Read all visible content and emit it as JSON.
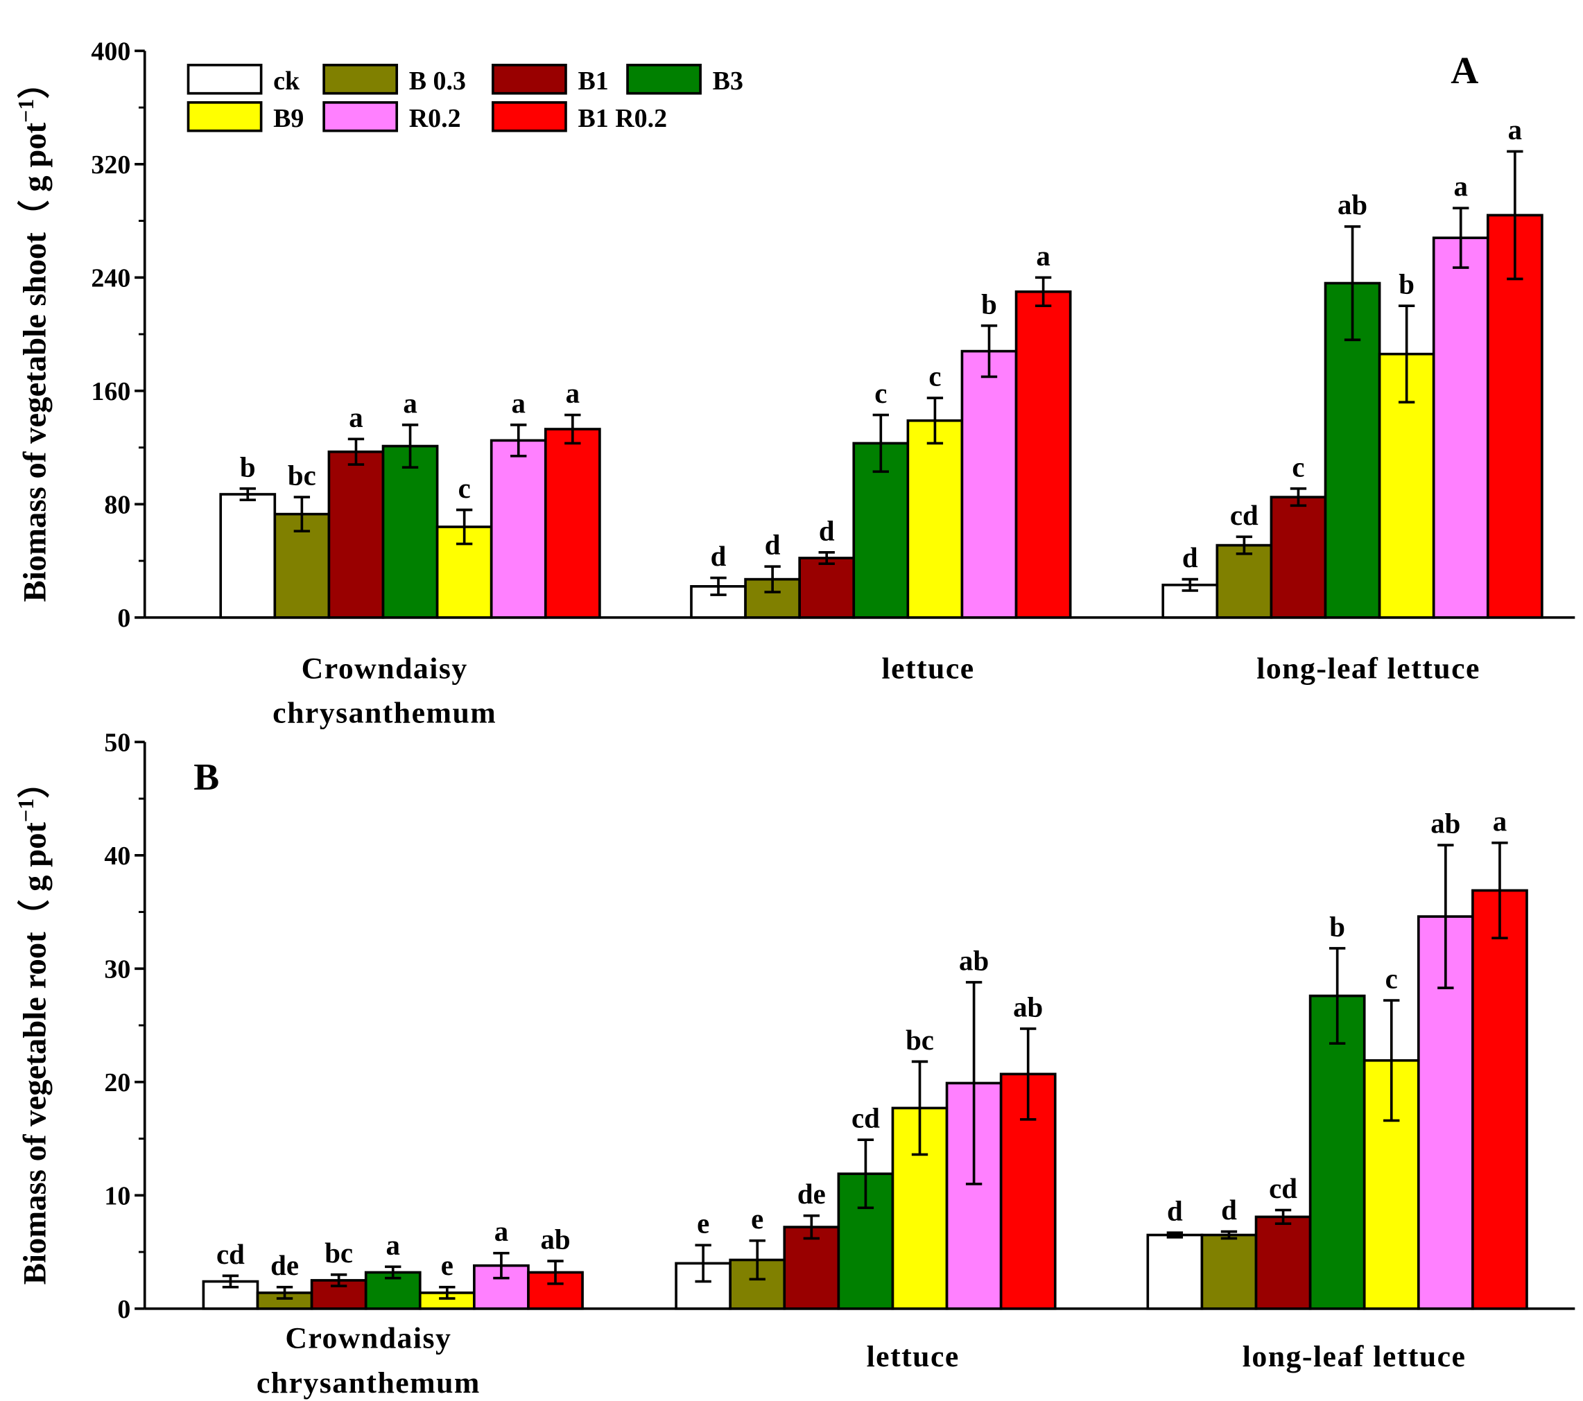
{
  "chart_data": [
    {
      "type": "bar",
      "panel_label": "A",
      "title": "",
      "xlabel": "",
      "ylabel": "Biomass of vegetable shoot（ g pot",
      "ylabel_sup": "−1",
      "ylabel_close": "）",
      "ylim": [
        0,
        400
      ],
      "yticks": [
        0,
        80,
        160,
        240,
        320,
        400
      ],
      "categories": [
        [
          "Crowndaisy",
          "chrysanthemum"
        ],
        [
          "lettuce"
        ],
        [
          "long-leaf lettuce"
        ]
      ],
      "series": [
        {
          "name": "ck",
          "color": "#ffffff",
          "values": [
            87,
            22,
            23
          ],
          "errors": [
            4,
            6,
            4
          ],
          "letters": [
            "b",
            "d",
            "d"
          ]
        },
        {
          "name": "B 0.3",
          "color": "#808000",
          "values": [
            73,
            27,
            51
          ],
          "errors": [
            12,
            9,
            6
          ],
          "letters": [
            "bc",
            "d",
            "cd"
          ]
        },
        {
          "name": "B1",
          "color": "#990000",
          "values": [
            117,
            42,
            85
          ],
          "errors": [
            9,
            4,
            6
          ],
          "letters": [
            "a",
            "d",
            "c"
          ]
        },
        {
          "name": "B3",
          "color": "#008000",
          "values": [
            121,
            123,
            236
          ],
          "errors": [
            15,
            20,
            40
          ],
          "letters": [
            "a",
            "c",
            "ab"
          ]
        },
        {
          "name": "B9",
          "color": "#ffff00",
          "values": [
            64,
            139,
            186
          ],
          "errors": [
            12,
            16,
            34
          ],
          "letters": [
            "c",
            "c",
            "b"
          ]
        },
        {
          "name": "R0.2",
          "color": "#ff80ff",
          "values": [
            125,
            188,
            268
          ],
          "errors": [
            11,
            18,
            21
          ],
          "letters": [
            "a",
            "b",
            "a"
          ]
        },
        {
          "name": "B1 R0.2",
          "color": "#ff0000",
          "values": [
            133,
            230,
            284
          ],
          "errors": [
            10,
            10,
            45
          ],
          "letters": [
            "a",
            "a",
            "a"
          ]
        }
      ],
      "legend": "top-left",
      "grid": false
    },
    {
      "type": "bar",
      "panel_label": "B",
      "title": "",
      "xlabel": "",
      "ylabel": "Biomass of vegetable root（ g pot",
      "ylabel_sup": "−1",
      "ylabel_close": "）",
      "ylim": [
        0,
        50
      ],
      "yticks": [
        0,
        10,
        20,
        30,
        40,
        50
      ],
      "categories": [
        [
          "Crowndaisy",
          "chrysanthemum"
        ],
        [
          "lettuce"
        ],
        [
          "long-leaf lettuce"
        ]
      ],
      "series": [
        {
          "name": "ck",
          "color": "#ffffff",
          "values": [
            2.4,
            4.0,
            6.5
          ],
          "errors": [
            0.5,
            1.6,
            0.2
          ],
          "letters": [
            "cd",
            "e",
            "d"
          ]
        },
        {
          "name": "B 0.3",
          "color": "#808000",
          "values": [
            1.4,
            4.3,
            6.5
          ],
          "errors": [
            0.5,
            1.7,
            0.3
          ],
          "letters": [
            "de",
            "e",
            "d"
          ]
        },
        {
          "name": "B1",
          "color": "#990000",
          "values": [
            2.5,
            7.2,
            8.1
          ],
          "errors": [
            0.5,
            1.0,
            0.6
          ],
          "letters": [
            "bc",
            "de",
            "cd"
          ]
        },
        {
          "name": "B3",
          "color": "#008000",
          "values": [
            3.2,
            11.9,
            27.6
          ],
          "errors": [
            0.5,
            3.0,
            4.2
          ],
          "letters": [
            "a",
            "cd",
            "b"
          ]
        },
        {
          "name": "B9",
          "color": "#ffff00",
          "values": [
            1.4,
            17.7,
            21.9
          ],
          "errors": [
            0.5,
            4.1,
            5.3
          ],
          "letters": [
            "e",
            "bc",
            "c"
          ]
        },
        {
          "name": "R0.2",
          "color": "#ff80ff",
          "values": [
            3.8,
            19.9,
            34.6
          ],
          "errors": [
            1.1,
            8.9,
            6.3
          ],
          "letters": [
            "a",
            "ab",
            "ab"
          ]
        },
        {
          "name": "B1 R0.2",
          "color": "#ff0000",
          "values": [
            3.2,
            20.7,
            36.9
          ],
          "errors": [
            1.0,
            4.0,
            4.2
          ],
          "letters": [
            "ab",
            "ab",
            "a"
          ]
        }
      ],
      "grid": false
    }
  ]
}
